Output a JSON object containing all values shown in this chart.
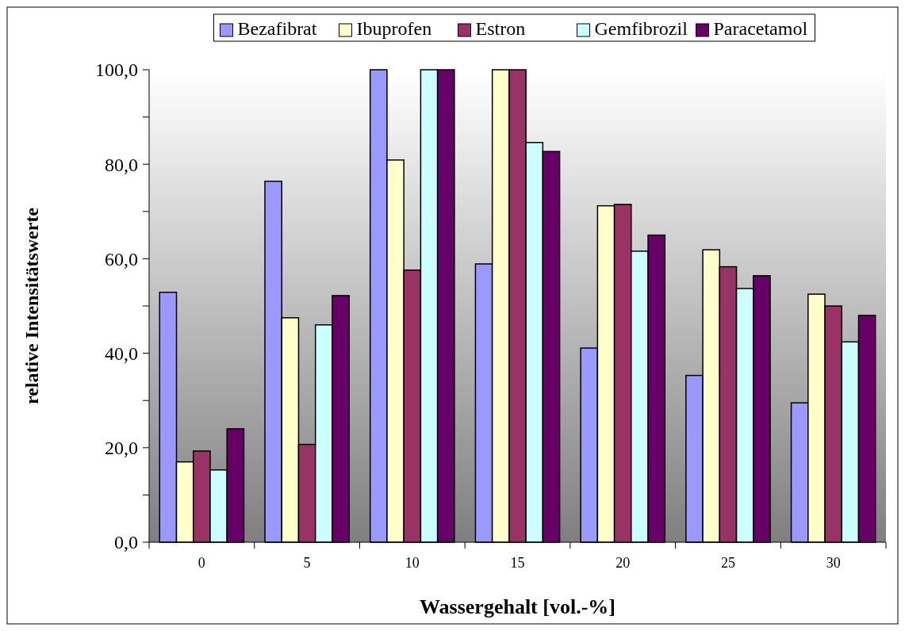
{
  "chart_data": {
    "type": "bar",
    "xlabel": "Wassergehalt [vol.-%]",
    "ylabel": "relative Intensitätswerte",
    "categories": [
      "0",
      "5",
      "10",
      "15",
      "20",
      "25",
      "30"
    ],
    "series": [
      {
        "name": "Bezafibrat",
        "color": "#9999ff",
        "values": [
          52.9,
          76.4,
          100,
          58.9,
          41.1,
          35.3,
          29.5
        ]
      },
      {
        "name": "Ibuprofen",
        "color": "#ffffcc",
        "values": [
          17.0,
          47.5,
          80.9,
          100,
          71.2,
          61.9,
          52.5
        ]
      },
      {
        "name": "Estron",
        "color": "#993366",
        "values": [
          19.3,
          20.7,
          57.6,
          100,
          71.5,
          58.3,
          50.0
        ]
      },
      {
        "name": "Gemfibrozil",
        "color": "#ccffff",
        "values": [
          15.3,
          46.0,
          100,
          84.6,
          61.6,
          53.7,
          42.4
        ]
      },
      {
        "name": "Paracetamol",
        "color": "#660066",
        "values": [
          24.0,
          52.2,
          100,
          82.7,
          65.0,
          56.4,
          48.0
        ]
      }
    ],
    "ylim": [
      0,
      100
    ],
    "yticks": [
      {
        "value": 0,
        "label": "0,0"
      },
      {
        "value": 10,
        "label": null
      },
      {
        "value": 20,
        "label": "20,0"
      },
      {
        "value": 30,
        "label": null
      },
      {
        "value": 40,
        "label": "40,0"
      },
      {
        "value": 50,
        "label": null
      },
      {
        "value": 60,
        "label": "60,0"
      },
      {
        "value": 70,
        "label": null
      },
      {
        "value": 80,
        "label": "80,0"
      },
      {
        "value": 90,
        "label": null
      },
      {
        "value": 100,
        "label": "100,0"
      }
    ],
    "grid": false,
    "legend": "top"
  }
}
